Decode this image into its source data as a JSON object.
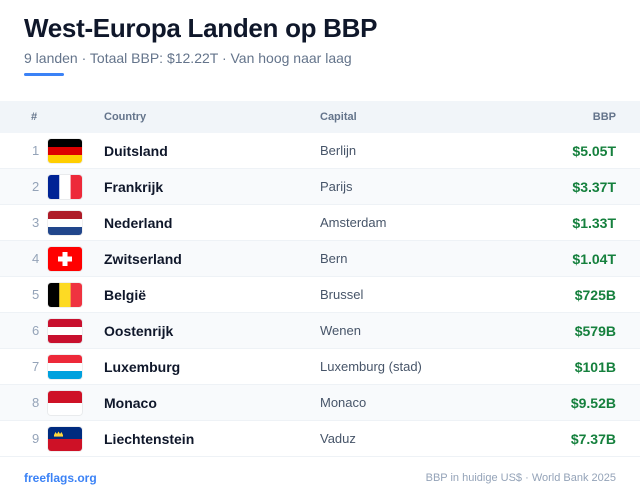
{
  "header": {
    "title": "West-Europa Landen op BBP",
    "subtitle": "9 landen · Totaal BBP: $12.22T · Van hoog naar laag",
    "accent_color": "#3b82f6"
  },
  "table": {
    "columns": {
      "rank": "#",
      "country": "Country",
      "capital": "Capital",
      "gdp": "BBP"
    },
    "rows": [
      {
        "rank": "1",
        "flag_icon": "germany-flag-icon",
        "country": "Duitsland",
        "capital": "Berlijn",
        "gdp": "$5.05T"
      },
      {
        "rank": "2",
        "flag_icon": "france-flag-icon",
        "country": "Frankrijk",
        "capital": "Parijs",
        "gdp": "$3.37T"
      },
      {
        "rank": "3",
        "flag_icon": "netherlands-flag-icon",
        "country": "Nederland",
        "capital": "Amsterdam",
        "gdp": "$1.33T"
      },
      {
        "rank": "4",
        "flag_icon": "switzerland-flag-icon",
        "country": "Zwitserland",
        "capital": "Bern",
        "gdp": "$1.04T"
      },
      {
        "rank": "5",
        "flag_icon": "belgium-flag-icon",
        "country": "België",
        "capital": "Brussel",
        "gdp": "$725B"
      },
      {
        "rank": "6",
        "flag_icon": "austria-flag-icon",
        "country": "Oostenrijk",
        "capital": "Wenen",
        "gdp": "$579B"
      },
      {
        "rank": "7",
        "flag_icon": "luxembourg-flag-icon",
        "country": "Luxemburg",
        "capital": "Luxemburg (stad)",
        "gdp": "$101B"
      },
      {
        "rank": "8",
        "flag_icon": "monaco-flag-icon",
        "country": "Monaco",
        "capital": "Monaco",
        "gdp": "$9.52B"
      },
      {
        "rank": "9",
        "flag_icon": "liechtenstein-flag-icon",
        "country": "Liechtenstein",
        "capital": "Vaduz",
        "gdp": "$7.37B"
      }
    ],
    "gdp_color": "#15803d"
  },
  "footer": {
    "brand": "freeflags.org",
    "source": "BBP in huidige US$ · World Bank 2025"
  }
}
